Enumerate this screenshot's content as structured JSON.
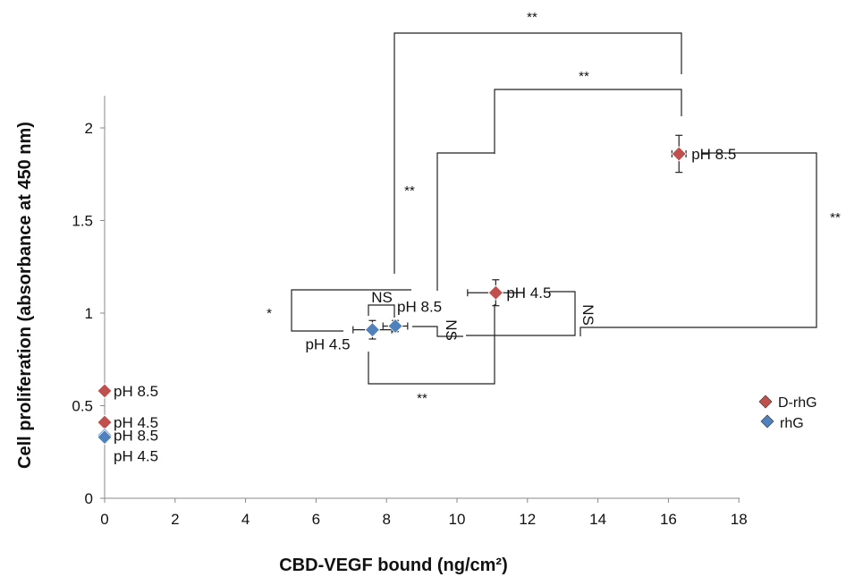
{
  "chart_data": {
    "type": "scatter",
    "xlabel": "CBD-VEGF bound (ng/cm²)",
    "ylabel": "Cell proliferation (absorbance at 450 nm)",
    "xlim": [
      0,
      18
    ],
    "ylim": [
      0,
      2
    ],
    "x_ticks": [
      "0",
      "2",
      "4",
      "6",
      "8",
      "10",
      "12",
      "14",
      "16",
      "18"
    ],
    "y_ticks": [
      "0",
      "0.5",
      "1",
      "1.5",
      "2"
    ],
    "grid": false,
    "legend_position": "right",
    "colors": {
      "D-rhG": "#c0504d",
      "rhG": "#4f81bd"
    },
    "series": [
      {
        "name": "D-rhG",
        "color": "#c0504d",
        "points": [
          {
            "x": 0,
            "y": 0.58,
            "label": "pH 8.5"
          },
          {
            "x": 0,
            "y": 0.41,
            "label": "pH 4.5"
          },
          {
            "x": 11.1,
            "y": 1.11,
            "label": "pH 4.5",
            "x_err": 0.8,
            "y_err": 0.07
          },
          {
            "x": 16.3,
            "y": 1.86,
            "label": "pH 8.5",
            "x_err": 0.2,
            "y_err": 0.1
          }
        ]
      },
      {
        "name": "rhG",
        "color": "#4f81bd",
        "points": [
          {
            "x": 0,
            "y": 0.34,
            "label": "pH 8.5"
          },
          {
            "x": 0,
            "y": 0.33,
            "label": "pH 4.5"
          },
          {
            "x": 7.6,
            "y": 0.91,
            "label": "pH 4.5",
            "x_err": 0.55,
            "y_err": 0.05
          },
          {
            "x": 8.25,
            "y": 0.93,
            "label": "pH 8.5",
            "x_err": 0.35,
            "y_err": 0.03
          }
        ]
      }
    ],
    "significance": [
      {
        "label": "**",
        "pair": [
          "rhG pH 4.5",
          "D-rhG pH 8.5"
        ]
      },
      {
        "label": "**",
        "pair": [
          "D-rhG pH 4.5",
          "D-rhG pH 8.5"
        ]
      },
      {
        "label": "**",
        "pair": [
          "rhG pH 8.5",
          "D-rhG pH 4.5"
        ]
      },
      {
        "label": "**",
        "pair": [
          "rhG pH 8.5",
          "D-rhG pH 8.5"
        ]
      },
      {
        "label": "NS",
        "pair": [
          "rhG pH 4.5",
          "rhG pH 8.5"
        ]
      },
      {
        "label": "*",
        "pair": [
          "rhG pH 4.5",
          "D-rhG pH 4.5"
        ]
      },
      {
        "label": "NS",
        "pair": [
          "rhG pH 8.5",
          "D-rhG pH 4.5"
        ]
      },
      {
        "label": "NS",
        "pair": [
          "rhG pH 4.5",
          "D-rhG pH 8.5"
        ]
      },
      {
        "label": "**",
        "pair": [
          "rhG pH 4.5",
          "D-rhG pH 4.5"
        ]
      }
    ]
  }
}
